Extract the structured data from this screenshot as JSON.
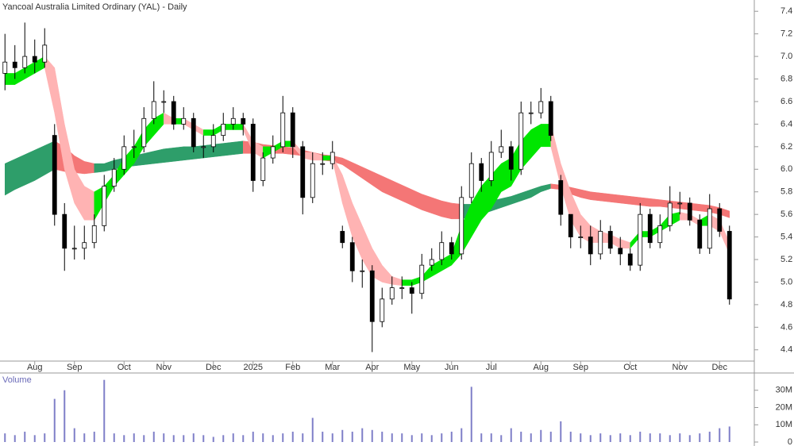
{
  "chart_data": [
    {
      "type": "candlestick",
      "title": "Yancoal Australia Limited Ordinary (YAL) - Daily",
      "categories": [
        null,
        null,
        null,
        "Aug",
        null,
        null,
        null,
        "Sep",
        null,
        null,
        null,
        null,
        "Oct",
        null,
        null,
        null,
        "Nov",
        null,
        null,
        null,
        null,
        "Dec",
        null,
        null,
        null,
        "2025",
        null,
        null,
        null,
        "Feb",
        null,
        null,
        null,
        "Mar",
        null,
        null,
        null,
        "Apr",
        null,
        null,
        null,
        "May",
        null,
        null,
        null,
        "Jun",
        null,
        null,
        null,
        "Jul",
        null,
        null,
        null,
        null,
        "Aug",
        null,
        null,
        null,
        "Sep",
        null,
        null,
        null,
        null,
        "Oct",
        null,
        null,
        null,
        null,
        "Nov",
        null,
        null,
        null,
        "Dec",
        null
      ],
      "open": [
        6.85,
        6.95,
        6.9,
        7.0,
        6.95,
        6.3,
        5.6,
        5.3,
        5.3,
        5.35,
        5.5,
        5.85,
        6.0,
        6.2,
        6.2,
        6.45,
        6.6,
        6.6,
        6.4,
        6.45,
        6.2,
        6.2,
        6.3,
        6.4,
        6.45,
        6.4,
        5.9,
        6.1,
        6.2,
        6.5,
        6.2,
        5.75,
        6.05,
        6.05,
        5.45,
        5.35,
        5.1,
        5.1,
        4.65,
        4.85,
        4.95,
        4.95,
        4.9,
        5.15,
        5.2,
        5.35,
        5.25,
        5.75,
        6.05,
        5.9,
        6.15,
        6.2,
        6.0,
        6.5,
        6.5,
        6.6,
        5.9,
        5.6,
        5.4,
        5.4,
        5.25,
        5.45,
        5.3,
        5.25,
        5.15,
        5.6,
        5.35,
        5.5,
        5.7,
        5.7,
        5.55,
        5.3,
        5.65,
        5.45
      ],
      "high": [
        7.2,
        7.1,
        7.3,
        7.15,
        7.25,
        6.4,
        5.7,
        5.5,
        5.5,
        5.6,
        5.95,
        6.1,
        6.3,
        6.35,
        6.55,
        6.78,
        6.7,
        6.65,
        6.55,
        6.5,
        6.3,
        6.4,
        6.5,
        6.55,
        6.5,
        6.45,
        6.15,
        6.3,
        6.65,
        6.55,
        6.25,
        6.15,
        6.15,
        6.25,
        5.5,
        5.4,
        5.2,
        5.15,
        4.95,
        5.05,
        5.05,
        5.0,
        5.25,
        5.3,
        5.45,
        5.4,
        5.85,
        6.15,
        6.1,
        6.25,
        6.35,
        6.25,
        6.6,
        6.6,
        6.72,
        6.65,
        5.95,
        5.6,
        5.5,
        5.5,
        5.55,
        5.5,
        5.4,
        5.3,
        5.7,
        5.65,
        5.6,
        5.85,
        5.8,
        5.75,
        5.6,
        5.78,
        5.7,
        5.5
      ],
      "low": [
        6.7,
        6.8,
        6.85,
        6.85,
        6.9,
        5.5,
        5.1,
        5.2,
        5.2,
        5.3,
        5.45,
        5.8,
        5.95,
        6.1,
        6.15,
        6.4,
        6.5,
        6.35,
        6.35,
        6.15,
        6.1,
        6.15,
        6.25,
        6.35,
        6.3,
        5.8,
        5.85,
        6.05,
        6.15,
        6.1,
        5.6,
        5.7,
        5.95,
        6.0,
        5.3,
        5.0,
        4.95,
        4.38,
        4.6,
        4.8,
        4.85,
        4.72,
        4.85,
        5.1,
        5.15,
        5.2,
        5.2,
        5.7,
        5.8,
        5.85,
        6.1,
        5.9,
        5.95,
        6.4,
        6.45,
        6.25,
        5.5,
        5.3,
        5.3,
        5.15,
        5.2,
        5.25,
        5.15,
        5.1,
        5.1,
        5.3,
        5.3,
        5.45,
        5.6,
        5.5,
        5.25,
        5.25,
        5.4,
        4.8
      ],
      "close": [
        6.95,
        6.9,
        7.0,
        6.95,
        7.1,
        5.6,
        5.3,
        5.3,
        5.35,
        5.5,
        5.85,
        6.0,
        6.2,
        6.2,
        6.45,
        6.6,
        6.6,
        6.4,
        6.45,
        6.2,
        6.2,
        6.3,
        6.4,
        6.45,
        6.4,
        5.9,
        6.1,
        6.2,
        6.5,
        6.2,
        5.75,
        6.05,
        6.05,
        6.15,
        5.35,
        5.1,
        5.1,
        4.65,
        4.85,
        4.95,
        4.95,
        4.9,
        5.15,
        5.2,
        5.35,
        5.25,
        5.75,
        6.05,
        5.9,
        6.15,
        6.2,
        6.0,
        6.5,
        6.5,
        6.6,
        6.3,
        5.6,
        5.4,
        5.4,
        5.25,
        5.45,
        5.3,
        5.25,
        5.15,
        5.6,
        5.35,
        5.5,
        5.7,
        5.7,
        5.55,
        5.3,
        5.65,
        5.45,
        4.85
      ],
      "up_color": "#ffffff",
      "down_color": "#000000",
      "ribbons": [
        {
          "rising_color": "#2e9e6a",
          "falling_color": "#f47676",
          "upper": [
            6.05,
            6.09,
            6.13,
            6.17,
            6.21,
            6.25,
            6.2,
            6.12,
            6.07,
            6.05,
            6.05,
            6.08,
            6.1,
            6.12,
            6.14,
            6.16,
            6.18,
            6.19,
            6.2,
            6.2,
            6.21,
            6.22,
            6.23,
            6.24,
            6.25,
            6.24,
            6.22,
            6.21,
            6.2,
            6.19,
            6.17,
            6.15,
            6.13,
            6.12,
            6.1,
            6.06,
            6.02,
            5.98,
            5.94,
            5.9,
            5.86,
            5.82,
            5.78,
            5.75,
            5.72,
            5.7,
            5.69,
            5.69,
            5.7,
            5.72,
            5.74,
            5.76,
            5.79,
            5.82,
            5.85,
            5.87,
            5.86,
            5.84,
            5.82,
            5.8,
            5.79,
            5.78,
            5.77,
            5.76,
            5.75,
            5.74,
            5.73,
            5.72,
            5.71,
            5.7,
            5.69,
            5.68,
            5.66,
            5.63
          ],
          "lower": [
            5.77,
            5.82,
            5.86,
            5.9,
            5.95,
            6.0,
            5.98,
            5.97,
            5.96,
            5.97,
            5.98,
            6.0,
            6.02,
            6.03,
            6.04,
            6.05,
            6.06,
            6.07,
            6.08,
            6.09,
            6.1,
            6.11,
            6.12,
            6.13,
            6.14,
            6.14,
            6.14,
            6.14,
            6.14,
            6.13,
            6.12,
            6.1,
            6.08,
            6.07,
            6.04,
            5.98,
            5.92,
            5.86,
            5.8,
            5.76,
            5.72,
            5.68,
            5.64,
            5.61,
            5.58,
            5.56,
            5.56,
            5.58,
            5.6,
            5.63,
            5.66,
            5.69,
            5.72,
            5.75,
            5.8,
            5.83,
            5.82,
            5.78,
            5.75,
            5.73,
            5.72,
            5.71,
            5.7,
            5.69,
            5.68,
            5.67,
            5.67,
            5.66,
            5.65,
            5.64,
            5.63,
            5.62,
            5.6,
            5.57
          ]
        },
        {
          "rising_color": "#00e600",
          "falling_color": "#ffb3b3",
          "upper": [
            6.85,
            6.85,
            6.9,
            6.95,
            7.0,
            6.9,
            6.4,
            6.0,
            5.85,
            5.8,
            5.85,
            5.95,
            6.1,
            6.2,
            6.35,
            6.45,
            6.5,
            6.45,
            6.45,
            6.4,
            6.35,
            6.35,
            6.4,
            6.4,
            6.4,
            6.25,
            6.2,
            6.2,
            6.25,
            6.25,
            6.15,
            6.15,
            6.12,
            6.12,
            5.95,
            5.7,
            5.5,
            5.3,
            5.15,
            5.05,
            5.02,
            5.02,
            5.05,
            5.15,
            5.2,
            5.25,
            5.5,
            5.7,
            5.85,
            5.95,
            6.05,
            6.1,
            6.25,
            6.35,
            6.4,
            6.4,
            6.05,
            5.8,
            5.6,
            5.5,
            5.45,
            5.42,
            5.38,
            5.35,
            5.45,
            5.45,
            5.5,
            5.6,
            5.62,
            5.6,
            5.55,
            5.6,
            5.55,
            5.35
          ],
          "lower": [
            6.75,
            6.75,
            6.8,
            6.85,
            6.9,
            6.5,
            6.0,
            5.7,
            5.55,
            5.55,
            5.7,
            5.85,
            5.95,
            6.05,
            6.2,
            6.3,
            6.4,
            6.4,
            6.4,
            6.35,
            6.3,
            6.3,
            6.35,
            6.35,
            6.35,
            6.15,
            6.1,
            6.15,
            6.2,
            6.2,
            6.1,
            6.08,
            6.08,
            6.08,
            5.7,
            5.4,
            5.2,
            5.05,
            5.0,
            4.98,
            4.97,
            4.97,
            5.0,
            5.05,
            5.1,
            5.15,
            5.25,
            5.4,
            5.55,
            5.65,
            5.8,
            5.85,
            6.0,
            6.1,
            6.2,
            6.2,
            5.85,
            5.55,
            5.4,
            5.35,
            5.35,
            5.35,
            5.3,
            5.3,
            5.4,
            5.4,
            5.45,
            5.5,
            5.55,
            5.55,
            5.5,
            5.5,
            5.45,
            5.25
          ]
        }
      ],
      "ylim": [
        4.3,
        7.5
      ],
      "yticks": [
        4.4,
        4.6,
        4.8,
        {
          "value": 5,
          "label": "5.0"
        },
        5.2,
        5.4,
        5.6,
        5.8,
        {
          "value": 6,
          "label": "6.0"
        },
        6.2,
        6.4,
        6.6,
        6.8,
        {
          "value": 7,
          "label": "7.0"
        },
        7.2,
        7.4
      ]
    },
    {
      "type": "bar",
      "title": "Volume",
      "color": "#7f7fc8",
      "values": [
        5000000,
        4000000,
        6000000,
        4000000,
        5000000,
        25000000,
        30000000,
        8000000,
        5000000,
        6000000,
        36000000,
        5000000,
        4000000,
        5000000,
        4000000,
        6000000,
        5000000,
        4000000,
        4000000,
        5000000,
        4000000,
        3000000,
        4000000,
        5000000,
        4000000,
        6000000,
        5000000,
        4000000,
        5000000,
        6000000,
        5000000,
        14000000,
        6000000,
        5000000,
        7000000,
        6000000,
        8000000,
        7000000,
        6000000,
        5000000,
        5000000,
        4000000,
        5000000,
        4000000,
        5000000,
        6000000,
        8000000,
        32000000,
        5000000,
        5000000,
        4000000,
        8000000,
        6000000,
        5000000,
        7000000,
        6000000,
        12000000,
        6000000,
        5000000,
        4000000,
        5000000,
        4000000,
        5000000,
        4000000,
        6000000,
        5000000,
        5000000,
        4000000,
        5000000,
        4000000,
        5000000,
        6000000,
        8000000,
        9000000
      ],
      "ylim": [
        0,
        40000000
      ],
      "yticks": [
        0,
        {
          "value": 10000000,
          "label": "10M"
        },
        {
          "value": 20000000,
          "label": "20M"
        },
        {
          "value": 30000000,
          "label": "30M"
        }
      ]
    }
  ]
}
